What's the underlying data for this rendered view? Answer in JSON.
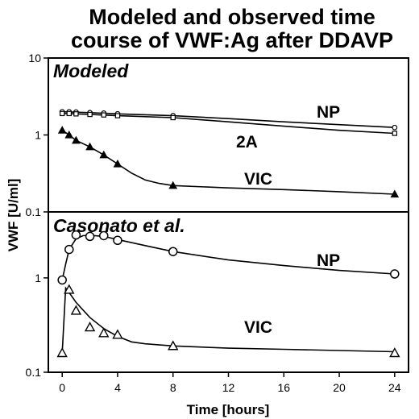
{
  "chart_data": {
    "type": "scatter",
    "title": "Modeled and observed time course of VWF:Ag after DDAVP",
    "title_lines": [
      "Modeled and observed time",
      "course of VWF:Ag after DDAVP"
    ],
    "xlabel": "Time [hours]",
    "ylabel": "VWF [U/ml]",
    "xlim": [
      -1,
      25
    ],
    "xticks": [
      0,
      4,
      8,
      12,
      16,
      20,
      24
    ],
    "scale_y": "log",
    "legend": "none",
    "grid": false,
    "panels": [
      {
        "label": "Modeled",
        "ylim": [
          0.1,
          10
        ],
        "yticks": [
          10,
          1,
          0.1
        ],
        "yticklabels": [
          "10",
          "1",
          "0.1"
        ],
        "series": [
          {
            "name": "NP",
            "marker": "small-open-circle",
            "x": [
              0,
              0.5,
              1,
              2,
              3,
              4,
              8,
              24
            ],
            "y": [
              2.0,
              2.0,
              1.98,
              1.95,
              1.92,
              1.88,
              1.78,
              1.25
            ],
            "curve_x": [
              0,
              0.25,
              2,
              4,
              8,
              12,
              16,
              20,
              24
            ],
            "curve_y": [
              2.0,
              2.0,
              1.95,
              1.88,
              1.78,
              1.63,
              1.48,
              1.36,
              1.25
            ]
          },
          {
            "name": "2A",
            "marker": "small-open-square",
            "x": [
              0,
              0.5,
              1,
              2,
              3,
              4,
              8,
              24
            ],
            "y": [
              1.9,
              1.9,
              1.88,
              1.85,
              1.82,
              1.78,
              1.68,
              1.05
            ],
            "curve_x": [
              0,
              0.25,
              2,
              4,
              8,
              12,
              16,
              20,
              24
            ],
            "curve_y": [
              1.9,
              1.9,
              1.85,
              1.78,
              1.68,
              1.48,
              1.3,
              1.15,
              1.05
            ]
          },
          {
            "name": "VIC",
            "marker": "filled-triangle",
            "x": [
              0,
              0.5,
              1,
              2,
              3,
              4,
              8,
              24
            ],
            "y": [
              1.15,
              1.0,
              0.85,
              0.7,
              0.55,
              0.42,
              0.22,
              0.17
            ],
            "curve_x": [
              0,
              0.5,
              1,
              2,
              3,
              4,
              5,
              6,
              7,
              8,
              12,
              16,
              20,
              24
            ],
            "curve_y": [
              1.15,
              1.0,
              0.85,
              0.7,
              0.55,
              0.42,
              0.32,
              0.26,
              0.235,
              0.22,
              0.205,
              0.195,
              0.183,
              0.17
            ]
          }
        ]
      },
      {
        "label": "Casonato et al.",
        "ylim": [
          0.1,
          5
        ],
        "yticks": [
          1,
          0.1
        ],
        "yticklabels": [
          "1",
          "0.1"
        ],
        "series": [
          {
            "name": "NP",
            "marker": "large-open-circle",
            "x": [
              0,
              0.5,
              1,
              2,
              3,
              4,
              8,
              24
            ],
            "y": [
              0.95,
              2.0,
              2.85,
              2.75,
              2.8,
              2.5,
              1.9,
              1.1
            ],
            "curve_x": [
              0,
              0.25,
              0.5,
              1,
              1.5,
              2,
              3,
              4,
              6,
              8,
              12,
              16,
              20,
              24
            ],
            "curve_y": [
              0.95,
              1.4,
              2.0,
              2.6,
              2.8,
              2.82,
              2.75,
              2.55,
              2.2,
              1.9,
              1.55,
              1.35,
              1.2,
              1.1
            ]
          },
          {
            "name": "VIC",
            "marker": "open-triangle",
            "x": [
              0,
              0.5,
              1,
              2,
              3,
              4,
              8,
              24
            ],
            "y": [
              0.16,
              0.75,
              0.45,
              0.3,
              0.26,
              0.25,
              0.19,
              0.16
            ],
            "curve_x": [
              0,
              0.25,
              0.5,
              1,
              2,
              3,
              4,
              5,
              6,
              8,
              12,
              16,
              20,
              24
            ],
            "curve_y": [
              0.16,
              0.78,
              0.7,
              0.55,
              0.38,
              0.29,
              0.24,
              0.21,
              0.2,
              0.19,
              0.18,
              0.175,
              0.17,
              0.165
            ]
          }
        ]
      }
    ]
  }
}
